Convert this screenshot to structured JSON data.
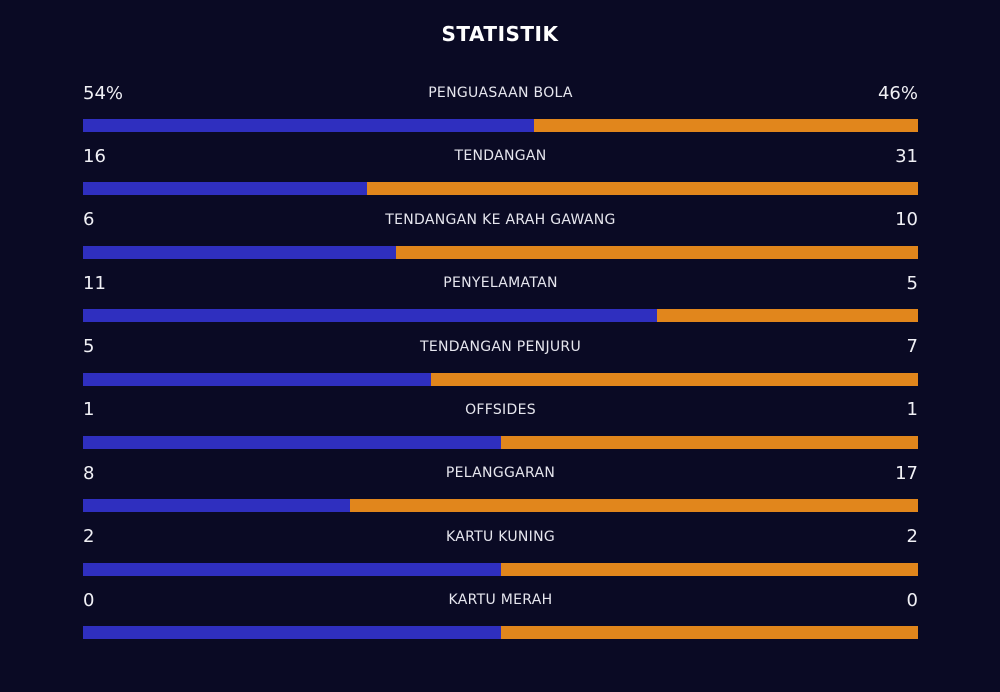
{
  "header": {
    "title": "STATISTIK"
  },
  "colors": {
    "background": "#0a0a24",
    "home": "#2f2fbf",
    "away": "#e1861c",
    "text": "#e8e8ef"
  },
  "stats": [
    {
      "label": "PENGUASAAN BOLA",
      "home": "54%",
      "away": "46%",
      "home_value": 54,
      "away_value": 46
    },
    {
      "label": "TENDANGAN",
      "home": "16",
      "away": "31",
      "home_value": 16,
      "away_value": 31
    },
    {
      "label": "TENDANGAN KE ARAH GAWANG",
      "home": "6",
      "away": "10",
      "home_value": 6,
      "away_value": 10
    },
    {
      "label": "PENYELAMATAN",
      "home": "11",
      "away": "5",
      "home_value": 11,
      "away_value": 5
    },
    {
      "label": "TENDANGAN PENJURU",
      "home": "5",
      "away": "7",
      "home_value": 5,
      "away_value": 7
    },
    {
      "label": "OFFSIDES",
      "home": "1",
      "away": "1",
      "home_value": 1,
      "away_value": 1
    },
    {
      "label": "PELANGGARAN",
      "home": "8",
      "away": "17",
      "home_value": 8,
      "away_value": 17
    },
    {
      "label": "KARTU KUNING",
      "home": "2",
      "away": "2",
      "home_value": 2,
      "away_value": 2
    },
    {
      "label": "KARTU MERAH",
      "home": "0",
      "away": "0",
      "home_value": 0,
      "away_value": 0
    }
  ]
}
